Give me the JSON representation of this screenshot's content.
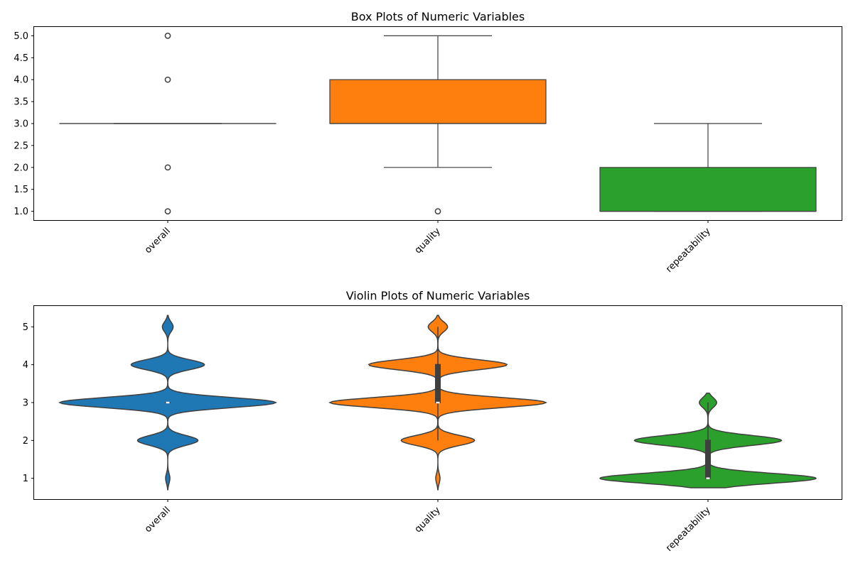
{
  "chart_data": [
    {
      "type": "box",
      "title": "Box Plots of Numeric Variables",
      "categories": [
        "overall",
        "quality",
        "repeatability"
      ],
      "ylim": [
        0.8,
        5.2
      ],
      "yticks": [
        "1.0",
        "1.5",
        "2.0",
        "2.5",
        "3.0",
        "3.5",
        "4.0",
        "4.5",
        "5.0"
      ],
      "ytick_values": [
        1.0,
        1.5,
        2.0,
        2.5,
        3.0,
        3.5,
        4.0,
        4.5,
        5.0
      ],
      "grid": false,
      "boxes": [
        {
          "name": "overall",
          "color": "#1f77b4",
          "q1": 3,
          "median": 3,
          "q3": 3,
          "whisker_low": 3,
          "whisker_high": 3,
          "outliers": [
            1,
            2,
            4,
            5
          ]
        },
        {
          "name": "quality",
          "color": "#ff7f0e",
          "q1": 3,
          "median": 3,
          "q3": 4,
          "whisker_low": 2,
          "whisker_high": 5,
          "outliers": [
            1
          ]
        },
        {
          "name": "repeatability",
          "color": "#2ca02c",
          "q1": 1,
          "median": 1,
          "q3": 2,
          "whisker_low": 1,
          "whisker_high": 3,
          "outliers": []
        }
      ]
    },
    {
      "type": "violin",
      "title": "Violin Plots of Numeric Variables",
      "categories": [
        "overall",
        "quality",
        "repeatability"
      ],
      "ylim": [
        0.45,
        5.55
      ],
      "yticks": [
        "1",
        "2",
        "3",
        "4",
        "5"
      ],
      "ytick_values": [
        1,
        2,
        3,
        4,
        5
      ],
      "grid": false,
      "violins": [
        {
          "name": "overall",
          "color": "#1f77b4",
          "range": [
            0.7,
            5.3
          ],
          "peaks": [
            [
              1,
              0.02
            ],
            [
              2,
              0.28
            ],
            [
              3,
              1.0
            ],
            [
              4,
              0.34
            ],
            [
              5,
              0.05
            ]
          ],
          "q1": 3,
          "median": 3,
          "q3": 3,
          "whisker_low": 3,
          "whisker_high": 3
        },
        {
          "name": "quality",
          "color": "#ff7f0e",
          "range": [
            0.7,
            5.3
          ],
          "peaks": [
            [
              1,
              0.02
            ],
            [
              2,
              0.34
            ],
            [
              3,
              1.0
            ],
            [
              4,
              0.64
            ],
            [
              5,
              0.09
            ]
          ],
          "q1": 3,
          "median": 3,
          "q3": 4,
          "whisker_low": 2,
          "whisker_high": 5
        },
        {
          "name": "repeatability",
          "color": "#2ca02c",
          "range": [
            0.75,
            3.25
          ],
          "peaks": [
            [
              1,
              1.0
            ],
            [
              2,
              0.68
            ],
            [
              3,
              0.08
            ]
          ],
          "q1": 1,
          "median": 1,
          "q3": 2,
          "whisker_low": 1,
          "whisker_high": 3
        }
      ]
    }
  ]
}
